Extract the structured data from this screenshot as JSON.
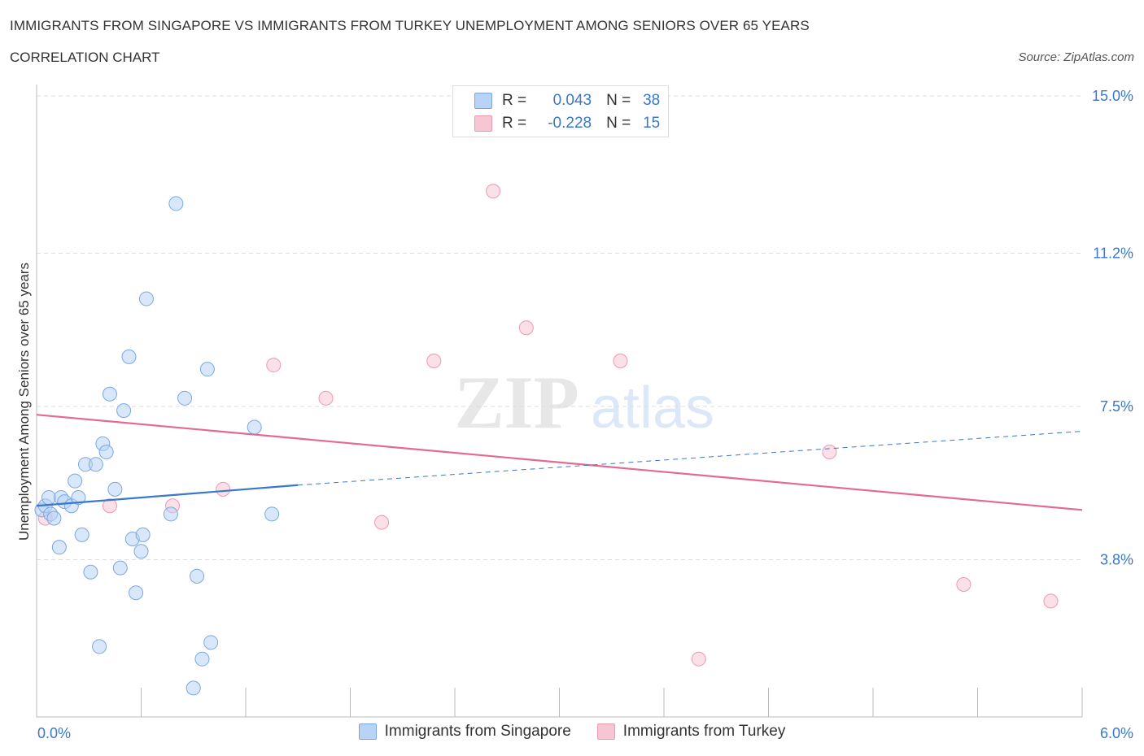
{
  "title": "IMMIGRANTS FROM SINGAPORE VS IMMIGRANTS FROM TURKEY UNEMPLOYMENT AMONG SENIORS OVER 65 YEARS",
  "subtitle": "CORRELATION CHART",
  "source": "Source: ZipAtlas.com",
  "watermark": {
    "zip": "ZIP",
    "atlas": "atlas"
  },
  "stats": [
    {
      "r_label": "R =",
      "r_value": "0.043",
      "n_label": "N =",
      "n_value": "38"
    },
    {
      "r_label": "R =",
      "r_value": "-0.228",
      "n_label": "N =",
      "n_value": "15"
    }
  ],
  "legend": [
    {
      "label": "Immigrants from Singapore"
    },
    {
      "label": "Immigrants from Turkey"
    }
  ],
  "colors": {
    "singapore_fill": "#b8d3f5",
    "singapore_stroke": "#7aa7e3",
    "singapore_line": "#3a78c9",
    "turkey_fill": "#f7c6d4",
    "turkey_stroke": "#eb9ab2",
    "turkey_line": "#e36a93",
    "axis_label": "#3a78c9",
    "grid": "#dddddd"
  },
  "chart_data": {
    "type": "scatter",
    "title": "IMMIGRANTS FROM SINGAPORE VS IMMIGRANTS FROM TURKEY UNEMPLOYMENT AMONG SENIORS OVER 65 YEARS",
    "xlabel": "",
    "ylabel": "Unemployment Among Seniors over 65 years",
    "xlim": [
      0.0,
      6.0
    ],
    "ylim": [
      0.0,
      15.0
    ],
    "x_tick_labels": [
      {
        "value": 0.0,
        "label": "0.0%"
      },
      {
        "value": 6.0,
        "label": "6.0%"
      }
    ],
    "y_tick_labels": [
      {
        "value": 3.8,
        "label": "3.8%"
      },
      {
        "value": 7.5,
        "label": "7.5%"
      },
      {
        "value": 11.2,
        "label": "11.2%"
      },
      {
        "value": 15.0,
        "label": "15.0%"
      }
    ],
    "x_minor_ticks": [
      0.6,
      1.2,
      1.8,
      2.4,
      3.0,
      3.6,
      4.2,
      4.8,
      5.4,
      6.0
    ],
    "series": [
      {
        "name": "Immigrants from Singapore",
        "points": [
          [
            0.03,
            5.0
          ],
          [
            0.05,
            5.1
          ],
          [
            0.07,
            5.3
          ],
          [
            0.08,
            4.9
          ],
          [
            0.1,
            4.8
          ],
          [
            0.13,
            4.1
          ],
          [
            0.14,
            5.3
          ],
          [
            0.16,
            5.2
          ],
          [
            0.2,
            5.1
          ],
          [
            0.22,
            5.7
          ],
          [
            0.24,
            5.3
          ],
          [
            0.26,
            4.4
          ],
          [
            0.28,
            6.1
          ],
          [
            0.31,
            3.5
          ],
          [
            0.34,
            6.1
          ],
          [
            0.36,
            1.7
          ],
          [
            0.38,
            6.6
          ],
          [
            0.4,
            6.4
          ],
          [
            0.42,
            7.8
          ],
          [
            0.45,
            5.5
          ],
          [
            0.48,
            3.6
          ],
          [
            0.5,
            7.4
          ],
          [
            0.53,
            8.7
          ],
          [
            0.55,
            4.3
          ],
          [
            0.57,
            3.0
          ],
          [
            0.6,
            4.0
          ],
          [
            0.61,
            4.4
          ],
          [
            0.63,
            10.1
          ],
          [
            0.77,
            4.9
          ],
          [
            0.8,
            12.4
          ],
          [
            0.85,
            7.7
          ],
          [
            0.9,
            0.7
          ],
          [
            0.92,
            3.4
          ],
          [
            0.95,
            1.4
          ],
          [
            0.98,
            8.4
          ],
          [
            1.0,
            1.8
          ],
          [
            1.25,
            7.0
          ],
          [
            1.35,
            4.9
          ]
        ],
        "trend": {
          "x": [
            0.0,
            1.5
          ],
          "y": [
            5.1,
            5.6
          ]
        },
        "trend_dashed": {
          "x": [
            1.5,
            6.0
          ],
          "y": [
            5.6,
            6.9
          ]
        }
      },
      {
        "name": "Immigrants from Turkey",
        "points": [
          [
            0.05,
            4.8
          ],
          [
            0.42,
            5.1
          ],
          [
            0.78,
            5.1
          ],
          [
            1.07,
            5.5
          ],
          [
            1.36,
            8.5
          ],
          [
            1.66,
            7.7
          ],
          [
            1.98,
            4.7
          ],
          [
            2.28,
            8.6
          ],
          [
            2.62,
            12.7
          ],
          [
            2.81,
            9.4
          ],
          [
            3.35,
            8.6
          ],
          [
            3.8,
            1.4
          ],
          [
            4.55,
            6.4
          ],
          [
            5.32,
            3.2
          ],
          [
            5.82,
            2.8
          ]
        ],
        "trend": {
          "x": [
            0.0,
            6.0
          ],
          "y": [
            7.3,
            5.0
          ]
        }
      }
    ]
  }
}
